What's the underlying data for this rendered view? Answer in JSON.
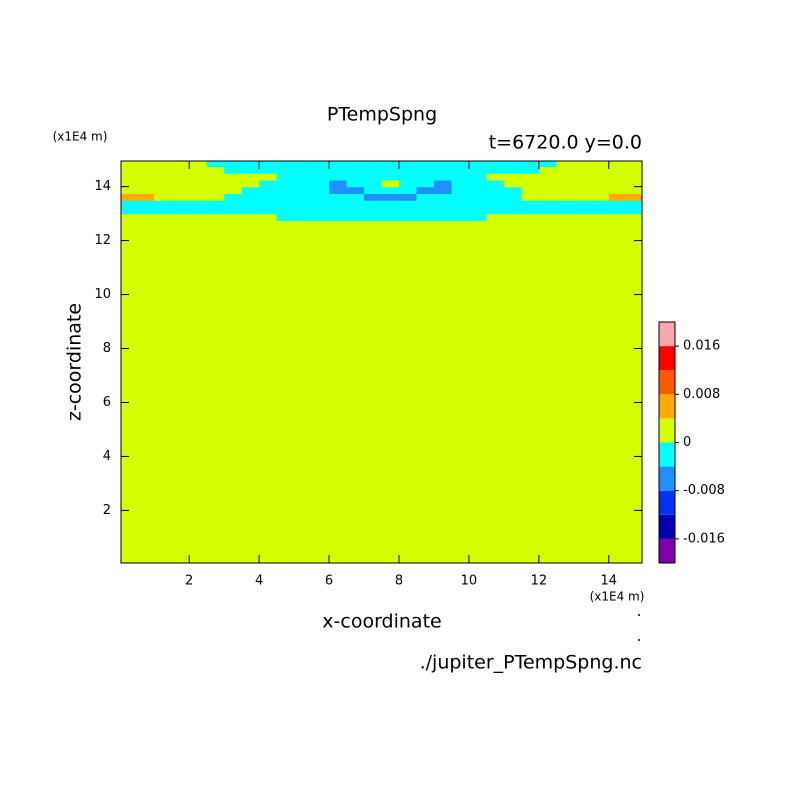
{
  "chart_data": {
    "type": "contour",
    "title": "PTempSpng",
    "subtitle": "t=6720.0 y=0.0",
    "x_label": "x-coordinate",
    "y_label": "z-coordinate",
    "x_unit": "(x1E4 m)",
    "y_unit": "(x1E4 m)",
    "footer": "./jupiter_PTempSpng.nc",
    "xlim": [
      0.05,
      14.95
    ],
    "ylim": [
      0.05,
      14.95
    ],
    "xticks": [
      2,
      4,
      6,
      8,
      10,
      12,
      14
    ],
    "yticks": [
      2,
      4,
      6,
      8,
      10,
      12,
      14
    ],
    "x_edges": [
      0,
      0.5,
      1,
      1.5,
      2,
      2.5,
      3,
      3.5,
      4,
      4.5,
      5,
      5.5,
      6,
      6.5,
      7,
      7.5,
      8,
      8.5,
      9,
      9.5,
      10,
      10.5,
      11,
      11.5,
      12,
      12.5,
      13,
      13.5,
      14,
      14.5,
      15
    ],
    "y_edges": [
      0,
      12.5,
      12.75,
      13,
      13.25,
      13.5,
      13.75,
      14,
      14.25,
      14.5,
      14.75,
      15
    ],
    "z": [
      [
        0.002,
        0.002,
        0.002,
        0.002,
        0.002,
        0.002,
        0.002,
        0.002,
        0.002,
        0.002,
        0.002,
        0.002,
        0.002,
        0.002,
        0.002,
        0.002,
        0.002,
        0.002,
        0.002,
        0.002,
        0.002,
        0.002,
        0.002,
        0.002,
        0.002,
        0.002,
        0.002,
        0.002,
        0.002,
        0.002
      ],
      [
        0.002,
        0.002,
        0.002,
        0.002,
        0.002,
        0.002,
        0.002,
        0.002,
        0.002,
        0.002,
        0.002,
        0.002,
        0.002,
        0.002,
        0.002,
        0.002,
        0.002,
        0.002,
        0.002,
        0.002,
        0.002,
        0.002,
        0.002,
        0.002,
        0.002,
        0.002,
        0.002,
        0.002,
        0.002,
        0.002
      ],
      [
        0.002,
        0.002,
        0.002,
        0.002,
        0.002,
        0.002,
        0.002,
        0.002,
        0.002,
        -0.002,
        -0.002,
        -0.002,
        -0.002,
        -0.002,
        -0.002,
        -0.002,
        -0.002,
        -0.002,
        -0.002,
        -0.002,
        -0.002,
        0.002,
        0.002,
        0.002,
        0.002,
        0.002,
        0.002,
        0.002,
        0.002,
        0.002
      ],
      [
        -0.002,
        -0.002,
        -0.002,
        -0.002,
        -0.002,
        -0.002,
        -0.002,
        -0.002,
        -0.002,
        -0.002,
        -0.002,
        -0.002,
        -0.002,
        -0.002,
        -0.002,
        -0.002,
        -0.002,
        -0.002,
        -0.002,
        -0.002,
        -0.002,
        -0.002,
        -0.002,
        -0.002,
        -0.002,
        -0.002,
        -0.002,
        -0.002,
        -0.002,
        -0.002
      ],
      [
        -0.002,
        -0.002,
        -0.002,
        -0.002,
        -0.002,
        -0.002,
        -0.002,
        -0.002,
        -0.002,
        -0.002,
        -0.002,
        -0.002,
        -0.002,
        -0.002,
        -0.002,
        -0.002,
        -0.002,
        -0.002,
        -0.002,
        -0.002,
        -0.002,
        -0.002,
        -0.002,
        -0.002,
        -0.002,
        -0.002,
        -0.002,
        -0.002,
        -0.002,
        -0.002
      ],
      [
        0.005,
        0.005,
        0.002,
        0.002,
        0.002,
        0.002,
        -0.002,
        -0.002,
        -0.002,
        -0.002,
        -0.002,
        -0.002,
        -0.002,
        -0.002,
        -0.005,
        -0.005,
        -0.005,
        -0.002,
        -0.002,
        -0.002,
        -0.002,
        -0.002,
        -0.002,
        0.002,
        0.002,
        0.002,
        0.002,
        0.002,
        0.005,
        0.005
      ],
      [
        0.002,
        0.002,
        0.002,
        0.002,
        0.002,
        0.002,
        0.002,
        -0.002,
        -0.002,
        -0.002,
        -0.002,
        -0.002,
        -0.005,
        -0.005,
        -0.002,
        -0.002,
        -0.002,
        -0.005,
        -0.005,
        -0.002,
        -0.002,
        -0.002,
        -0.002,
        0.002,
        0.002,
        0.002,
        0.002,
        0.002,
        0.002,
        0.002
      ],
      [
        0.002,
        0.002,
        0.002,
        0.002,
        0.002,
        0.002,
        0.002,
        0.002,
        -0.002,
        -0.002,
        -0.002,
        -0.002,
        -0.005,
        -0.002,
        -0.002,
        0.002,
        -0.002,
        -0.002,
        -0.005,
        -0.002,
        -0.002,
        -0.002,
        0.002,
        0.002,
        0.002,
        0.002,
        0.002,
        0.002,
        0.002,
        0.002
      ],
      [
        0.002,
        0.002,
        0.002,
        0.002,
        0.002,
        0.002,
        0.002,
        0.002,
        0.002,
        -0.002,
        -0.002,
        -0.002,
        -0.002,
        -0.002,
        -0.002,
        -0.002,
        -0.002,
        -0.002,
        -0.002,
        -0.002,
        -0.002,
        0.002,
        0.002,
        0.002,
        0.002,
        0.002,
        0.002,
        0.002,
        0.002,
        0.002
      ],
      [
        0.002,
        0.002,
        0.002,
        0.002,
        0.002,
        0.002,
        -0.002,
        -0.002,
        -0.002,
        -0.002,
        -0.002,
        -0.002,
        -0.002,
        -0.002,
        -0.002,
        -0.002,
        -0.002,
        -0.002,
        -0.002,
        -0.002,
        -0.002,
        -0.002,
        -0.002,
        -0.002,
        0.002,
        0.002,
        0.002,
        0.002,
        0.002,
        0.002
      ],
      [
        0.002,
        0.002,
        0.002,
        0.002,
        0.002,
        -0.002,
        -0.002,
        -0.002,
        -0.002,
        -0.002,
        -0.002,
        -0.002,
        -0.002,
        -0.002,
        -0.002,
        -0.002,
        -0.002,
        -0.002,
        -0.002,
        -0.002,
        -0.002,
        -0.002,
        -0.002,
        -0.002,
        -0.002,
        0.002,
        0.002,
        0.002,
        0.002,
        0.002
      ]
    ],
    "levels": [
      -0.02,
      -0.016,
      -0.012,
      -0.008,
      -0.004,
      0,
      0.004,
      0.008,
      0.012,
      0.016,
      0.02
    ],
    "colors": [
      "#8000a8",
      "#0000b4",
      "#0032f0",
      "#1e90ff",
      "#00ffff",
      "#d4ff00",
      "#ffaa00",
      "#ff5a00",
      "#ff0000",
      "#f8a8a8"
    ],
    "colorbar_ticks": [
      -0.016,
      -0.008,
      0,
      0.008,
      0.016
    ]
  }
}
